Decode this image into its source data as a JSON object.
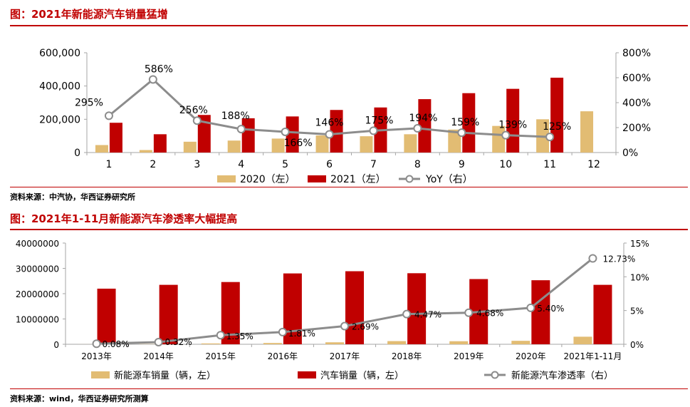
{
  "chart_data": [
    {
      "type": "bar",
      "title": "图：2021年新能源汽车销量猛增",
      "categories": [
        "1",
        "2",
        "3",
        "4",
        "5",
        "6",
        "7",
        "8",
        "9",
        "10",
        "11",
        "12"
      ],
      "series": [
        {
          "name": "2020（左）",
          "axis": "left",
          "kind": "bar",
          "color": "#e2bc73",
          "values": [
            45000,
            15000,
            65000,
            72000,
            84000,
            103000,
            98000,
            110000,
            138000,
            160000,
            200000,
            248000
          ]
        },
        {
          "name": "2021（左）",
          "axis": "left",
          "kind": "bar",
          "color": "#c00000",
          "values": [
            179000,
            110000,
            226000,
            206000,
            217000,
            256000,
            271000,
            321000,
            357000,
            383000,
            450000,
            null
          ]
        },
        {
          "name": "YoY（右）",
          "axis": "right",
          "kind": "line",
          "color": "#8c8c8c",
          "values": [
            295,
            586,
            256,
            188,
            166,
            146,
            175,
            194,
            159,
            139,
            125,
            null
          ],
          "labels": [
            "295%",
            "586%",
            "256%",
            "188%",
            "166%",
            "146%",
            "175%",
            "194%",
            "159%",
            "139%",
            "125%",
            ""
          ]
        }
      ],
      "ylim_left": [
        0,
        600000
      ],
      "ylim_right": [
        0,
        800
      ],
      "left_ticks": [
        "0",
        "200,000",
        "400,000",
        "600,000"
      ],
      "right_ticks": [
        "0%",
        "200%",
        "400%",
        "600%",
        "800%"
      ],
      "legend": [
        "2020（左）",
        "2021（左）",
        "YoY（右）"
      ],
      "source": "资料来源：中汽协，华西证券研究所"
    },
    {
      "type": "bar",
      "title": "图：2021年1-11月新能源汽车渗透率大幅提高",
      "categories": [
        "2013年",
        "2014年",
        "2015年",
        "2016年",
        "2017年",
        "2018年",
        "2019年",
        "2020年",
        "2021年1-11月"
      ],
      "series": [
        {
          "name": "新能源车销量（辆，左）",
          "axis": "left",
          "kind": "bar",
          "color": "#e2bc73",
          "values": [
            18000,
            75000,
            331000,
            507000,
            777000,
            1256000,
            1206000,
            1367000,
            2991000
          ]
        },
        {
          "name": "汽车销量（辆，左）",
          "axis": "left",
          "kind": "bar",
          "color": "#c00000",
          "values": [
            21980000,
            23490000,
            24600000,
            28000000,
            28870000,
            28080000,
            25770000,
            25310000,
            23490000
          ]
        },
        {
          "name": "新能源汽车渗透率（右）",
          "axis": "right",
          "kind": "line",
          "color": "#8c8c8c",
          "values": [
            0.08,
            0.32,
            1.35,
            1.81,
            2.69,
            4.47,
            4.68,
            5.4,
            12.73
          ],
          "labels": [
            "0.08%",
            "0.32%",
            "1.35%",
            "1.81%",
            "2.69%",
            "4.47%",
            "4.68%",
            "5.40%",
            "12.73%"
          ]
        }
      ],
      "ylim_left": [
        0,
        40000000
      ],
      "ylim_right": [
        0,
        15
      ],
      "left_ticks": [
        "0",
        "10000000",
        "20000000",
        "30000000",
        "40000000"
      ],
      "right_ticks": [
        "0%",
        "5%",
        "10%",
        "15%"
      ],
      "legend": [
        "新能源车销量（辆，左）",
        "汽车销量（辆，左）",
        "新能源汽车渗透率（右）"
      ],
      "source": "资料来源：wind，华西证券研究所测算"
    }
  ]
}
